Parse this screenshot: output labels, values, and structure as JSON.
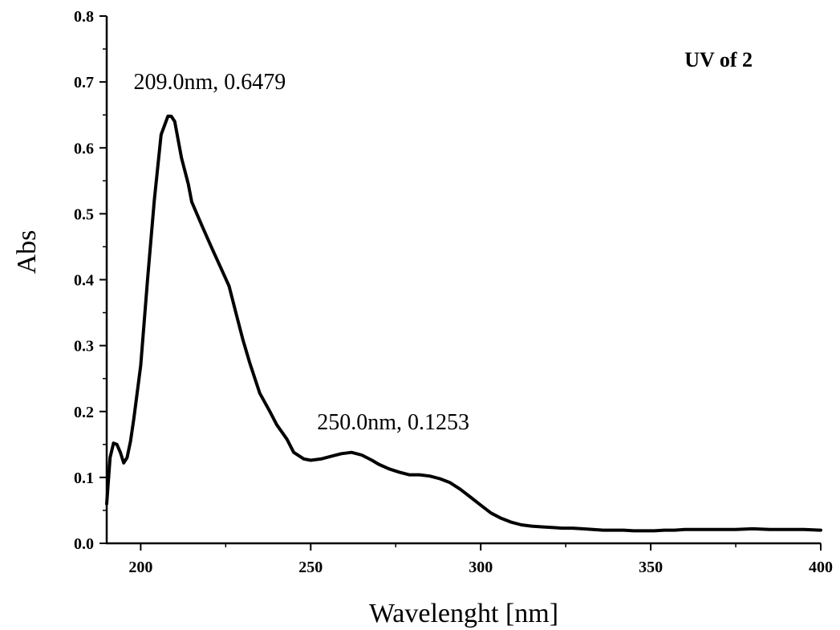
{
  "chart_data": {
    "type": "line",
    "title": "UV of 2",
    "xlabel": "Wavelenght [nm]",
    "ylabel": "Abs",
    "xlim": [
      190,
      400
    ],
    "ylim": [
      0.0,
      0.8
    ],
    "xticks": [
      200,
      250,
      300,
      350,
      400
    ],
    "xtick_labels": [
      "200",
      "250",
      "300",
      "350",
      "400"
    ],
    "yticks": [
      0.0,
      0.1,
      0.2,
      0.3,
      0.4,
      0.5,
      0.6,
      0.7,
      0.8
    ],
    "ytick_labels": [
      "0.0",
      "0.1",
      "0.2",
      "0.3",
      "0.4",
      "0.5",
      "0.6",
      "0.7",
      "0.8"
    ],
    "grid": false,
    "legend": "none",
    "line_color": "#000000",
    "series": [
      {
        "x": [
          190,
          191,
          192,
          193,
          194,
          195,
          196,
          197,
          198,
          200,
          202,
          204,
          206,
          208,
          209,
          210,
          212,
          214,
          215,
          218,
          221,
          224,
          226,
          228,
          230,
          232,
          235,
          238,
          240,
          243,
          245,
          248,
          250,
          253,
          256,
          259,
          262,
          265,
          268,
          270,
          273,
          276,
          279,
          282,
          285,
          288,
          291,
          294,
          297,
          300,
          303,
          306,
          309,
          312,
          315,
          318,
          321,
          324,
          327,
          330,
          333,
          336,
          339,
          342,
          345,
          348,
          351,
          354,
          357,
          360,
          365,
          370,
          375,
          380,
          385,
          390,
          395,
          400
        ],
        "y": [
          0.06,
          0.13,
          0.152,
          0.15,
          0.138,
          0.122,
          0.13,
          0.155,
          0.19,
          0.27,
          0.4,
          0.52,
          0.62,
          0.648,
          0.6479,
          0.64,
          0.585,
          0.545,
          0.518,
          0.482,
          0.447,
          0.413,
          0.39,
          0.35,
          0.31,
          0.275,
          0.228,
          0.2,
          0.18,
          0.158,
          0.138,
          0.128,
          0.126,
          0.128,
          0.132,
          0.136,
          0.138,
          0.134,
          0.126,
          0.12,
          0.113,
          0.108,
          0.104,
          0.104,
          0.102,
          0.098,
          0.092,
          0.082,
          0.07,
          0.058,
          0.046,
          0.038,
          0.032,
          0.028,
          0.026,
          0.025,
          0.024,
          0.023,
          0.023,
          0.022,
          0.021,
          0.02,
          0.02,
          0.02,
          0.019,
          0.019,
          0.019,
          0.02,
          0.02,
          0.021,
          0.021,
          0.021,
          0.021,
          0.022,
          0.021,
          0.021,
          0.021,
          0.02
        ]
      }
    ],
    "annotations": [
      {
        "text": "209.0nm, 0.6479",
        "x": 209.0,
        "y": 0.6479
      },
      {
        "text": "250.0nm, 0.1253",
        "x": 250.0,
        "y": 0.1253
      }
    ]
  }
}
